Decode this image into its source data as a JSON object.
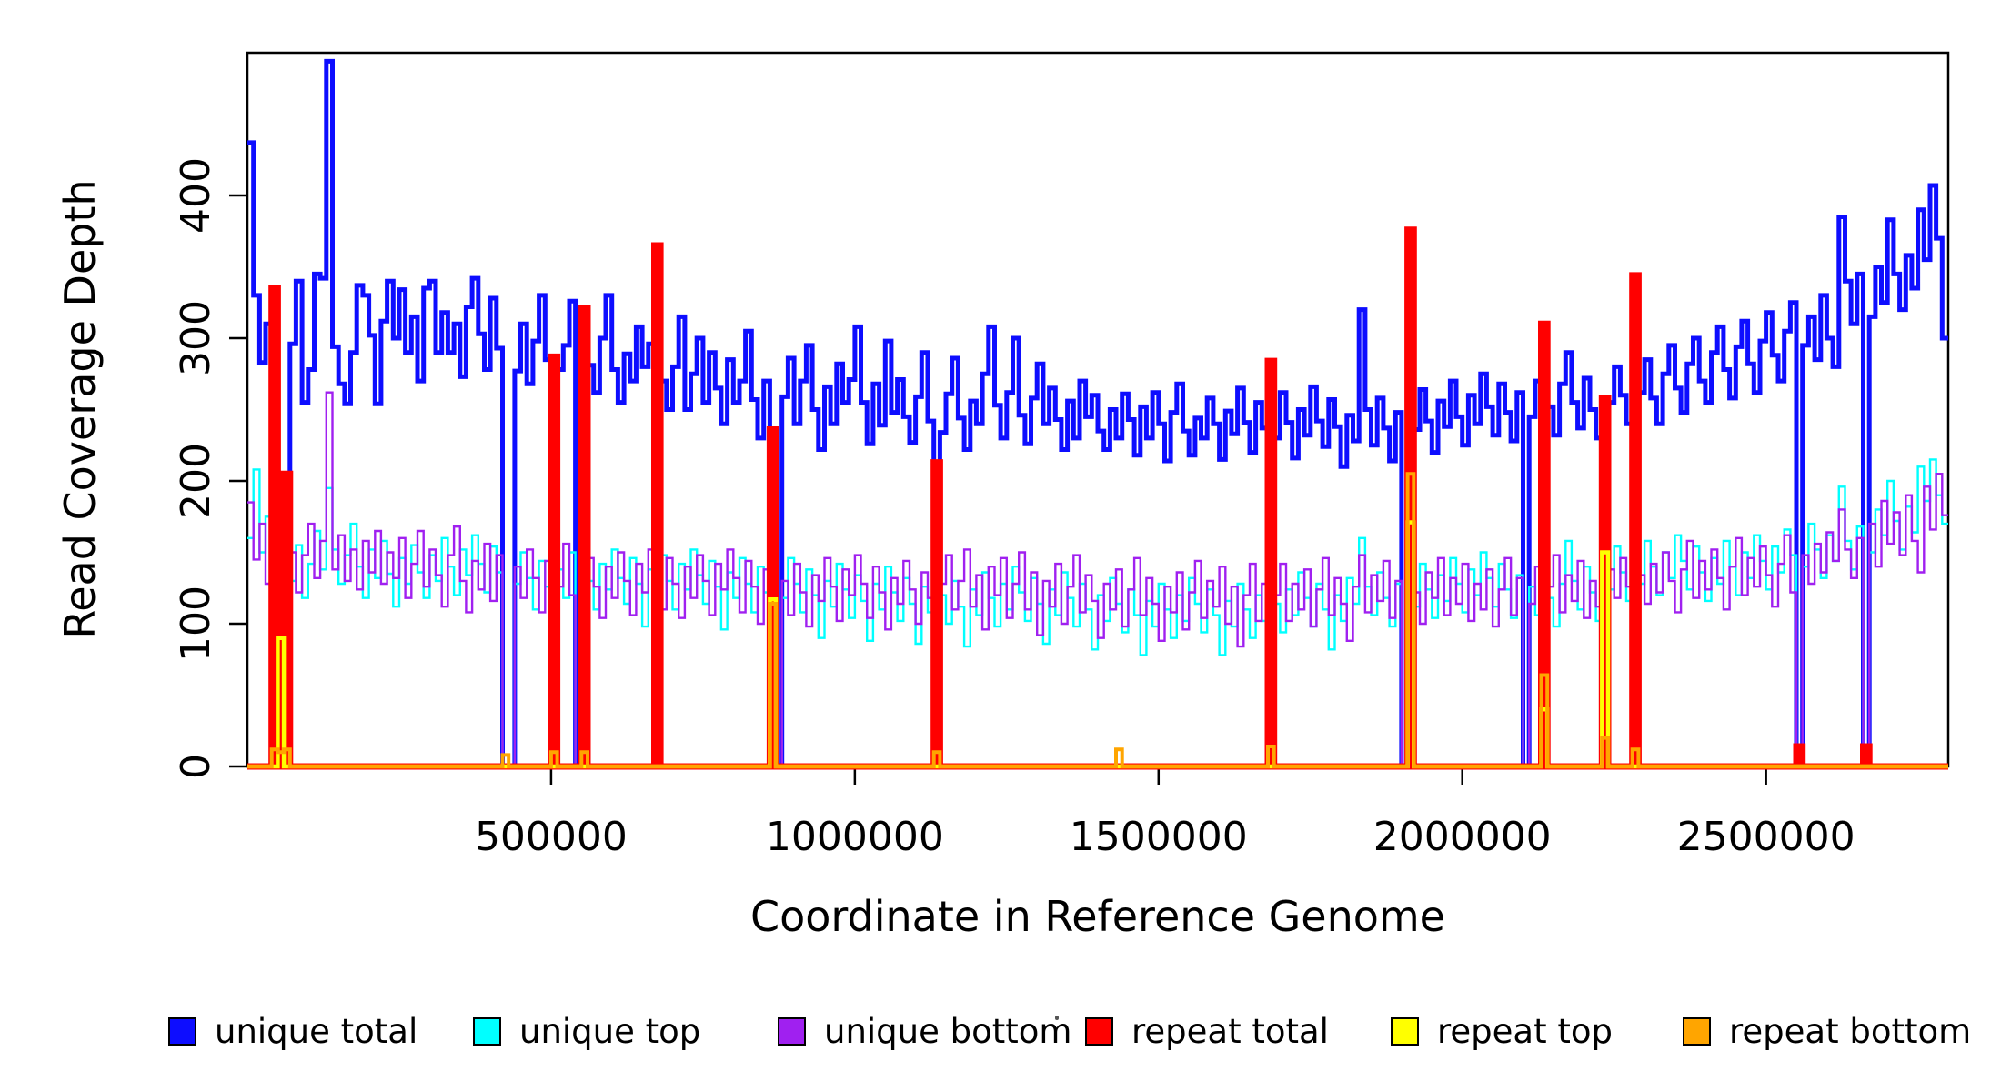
{
  "figure": {
    "background": "#FFFFFF",
    "frame_color": "#000000"
  },
  "axes": {
    "ylabel": "Read Coverage Depth",
    "xlabel": "Coordinate in Reference Genome",
    "y_ticks": [
      {
        "value": 0,
        "label": "0"
      },
      {
        "value": 100,
        "label": "100"
      },
      {
        "value": 200,
        "label": "200"
      },
      {
        "value": 300,
        "label": "300"
      },
      {
        "value": 400,
        "label": "400"
      }
    ],
    "x_ticks": [
      {
        "value": 500000,
        "label": "500000"
      },
      {
        "value": 1000000,
        "label": "1000000"
      },
      {
        "value": 1500000,
        "label": "1500000"
      },
      {
        "value": 2000000,
        "label": "2000000"
      },
      {
        "value": 2500000,
        "label": "2500000"
      }
    ],
    "xlim": [
      0,
      2800000
    ],
    "ylim": [
      0,
      500
    ],
    "grid": "off"
  },
  "legend": [
    {
      "label": "unique total",
      "color": "#0D0DFF"
    },
    {
      "label": "unique top",
      "color": "#00FFFF"
    },
    {
      "label": "unique bottom",
      "color": "#A020F0"
    },
    {
      "label": "repeat total",
      "color": "#FF0000"
    },
    {
      "label": "repeat top",
      "color": "#FFFF00"
    },
    {
      "label": "repeat bottom",
      "color": "#FFA500"
    }
  ],
  "chart_data": {
    "type": "line",
    "subtype": "step",
    "title": "",
    "xlabel": "Coordinate in Reference Genome",
    "ylabel": "Read Coverage Depth",
    "xlim": [
      0,
      2800000
    ],
    "ylim": [
      0,
      500
    ],
    "legend_position": "bottom",
    "x_start": 0,
    "x_step": 10000,
    "n_points": 280,
    "series": [
      {
        "name": "unique total",
        "color": "#0D0DFF",
        "line_width": 5,
        "values": [
          437,
          330,
          283,
          310,
          0,
          0,
          0,
          296,
          340,
          255,
          278,
          345,
          342,
          494,
          294,
          268,
          254,
          290,
          337,
          330,
          302,
          254,
          312,
          340,
          300,
          334,
          290,
          315,
          270,
          335,
          340,
          290,
          318,
          290,
          310,
          273,
          322,
          342,
          303,
          278,
          328,
          293,
          0,
          0,
          277,
          310,
          268,
          298,
          330,
          285,
          0,
          278,
          295,
          326,
          0,
          0,
          281,
          262,
          300,
          330,
          278,
          255,
          289,
          270,
          308,
          280,
          296,
          305,
          270,
          250,
          280,
          315,
          250,
          275,
          300,
          255,
          290,
          265,
          240,
          285,
          255,
          270,
          305,
          257,
          230,
          270,
          0,
          0,
          259,
          286,
          240,
          270,
          295,
          250,
          222,
          266,
          240,
          282,
          255,
          271,
          308,
          255,
          226,
          268,
          239,
          298,
          248,
          271,
          245,
          227,
          259,
          290,
          242,
          0,
          234,
          261,
          286,
          244,
          222,
          256,
          240,
          275,
          308,
          253,
          230,
          262,
          300,
          246,
          226,
          258,
          282,
          240,
          265,
          243,
          222,
          256,
          230,
          270,
          245,
          260,
          235,
          222,
          250,
          230,
          261,
          243,
          218,
          252,
          230,
          262,
          240,
          214,
          248,
          268,
          235,
          218,
          244,
          230,
          258,
          240,
          215,
          249,
          233,
          265,
          241,
          220,
          255,
          237,
          0,
          230,
          262,
          241,
          216,
          250,
          232,
          266,
          242,
          224,
          257,
          238,
          210,
          246,
          228,
          320,
          250,
          225,
          258,
          237,
          214,
          248,
          0,
          0,
          236,
          264,
          242,
          220,
          256,
          238,
          270,
          245,
          225,
          260,
          240,
          275,
          252,
          232,
          268,
          248,
          228,
          262,
          0,
          245,
          270,
          0,
          252,
          232,
          268,
          290,
          255,
          237,
          272,
          250,
          230,
          0,
          255,
          280,
          260,
          240,
          0,
          262,
          285,
          258,
          240,
          275,
          295,
          265,
          248,
          282,
          300,
          270,
          255,
          290,
          308,
          278,
          258,
          294,
          312,
          282,
          262,
          298,
          318,
          288,
          270,
          305,
          325,
          0,
          295,
          315,
          285,
          330,
          300,
          280,
          385,
          340,
          310,
          345,
          0,
          315,
          350,
          325,
          383,
          345,
          320,
          358,
          335,
          390,
          355,
          407,
          370,
          300
        ]
      },
      {
        "name": "unique top",
        "color": "#00FFFF",
        "line_width": 2.4,
        "values": [
          160,
          208,
          150,
          175,
          0,
          0,
          0,
          130,
          155,
          118,
          142,
          165,
          138,
          195,
          152,
          128,
          148,
          170,
          140,
          118,
          152,
          132,
          158,
          135,
          112,
          146,
          128,
          155,
          136,
          118,
          148,
          130,
          160,
          140,
          120,
          152,
          134,
          162,
          142,
          122,
          154,
          136,
          0,
          0,
          128,
          150,
          132,
          110,
          144,
          126,
          0,
          138,
          118,
          150,
          0,
          0,
          130,
          110,
          142,
          124,
          152,
          132,
          114,
          146,
          128,
          98,
          138,
          120,
          148,
          130,
          110,
          142,
          124,
          152,
          134,
          114,
          144,
          126,
          96,
          136,
          118,
          146,
          128,
          108,
          140,
          122,
          0,
          0,
          118,
          146,
          128,
          108,
          138,
          120,
          90,
          130,
          112,
          142,
          124,
          104,
          134,
          116,
          88,
          128,
          110,
          140,
          122,
          102,
          132,
          114,
          86,
          126,
          108,
          0,
          120,
          100,
          130,
          112,
          84,
          124,
          106,
          136,
          118,
          98,
          128,
          110,
          140,
          122,
          102,
          132,
          114,
          86,
          124,
          106,
          136,
          118,
          98,
          128,
          110,
          82,
          120,
          102,
          132,
          114,
          94,
          124,
          106,
          78,
          116,
          98,
          128,
          110,
          90,
          120,
          102,
          132,
          114,
          94,
          124,
          106,
          78,
          116,
          98,
          128,
          110,
          90,
          120,
          102,
          0,
          114,
          94,
          124,
          106,
          136,
          118,
          98,
          128,
          110,
          82,
          120,
          102,
          132,
          114,
          160,
          126,
          106,
          136,
          118,
          98,
          128,
          0,
          0,
          112,
          142,
          124,
          104,
          134,
          116,
          146,
          128,
          108,
          138,
          120,
          150,
          132,
          112,
          142,
          124,
          104,
          134,
          0,
          126,
          106,
          0,
          118,
          98,
          128,
          158,
          130,
          110,
          140,
          122,
          102,
          0,
          124,
          154,
          136,
          116,
          0,
          128,
          158,
          140,
          120,
          150,
          132,
          162,
          144,
          124,
          154,
          136,
          116,
          146,
          128,
          158,
          140,
          120,
          150,
          132,
          162,
          144,
          124,
          154,
          136,
          166,
          148,
          0,
          140,
          170,
          152,
          132,
          162,
          144,
          196,
          158,
          138,
          168,
          0,
          150,
          180,
          162,
          200,
          172,
          152,
          182,
          164,
          210,
          186,
          215,
          190,
          170
        ]
      },
      {
        "name": "unique bottom",
        "color": "#A020F0",
        "line_width": 2.4,
        "values": [
          185,
          145,
          170,
          128,
          0,
          0,
          0,
          150,
          122,
          148,
          170,
          132,
          158,
          262,
          138,
          162,
          130,
          152,
          124,
          158,
          136,
          165,
          128,
          150,
          132,
          160,
          118,
          142,
          165,
          126,
          152,
          134,
          112,
          148,
          168,
          130,
          108,
          144,
          124,
          156,
          116,
          148,
          0,
          0,
          140,
          118,
          152,
          132,
          108,
          144,
          0,
          126,
          156,
          120,
          0,
          0,
          146,
          126,
          104,
          140,
          118,
          150,
          130,
          106,
          142,
          122,
          152,
          134,
          110,
          146,
          128,
          104,
          140,
          118,
          148,
          130,
          106,
          142,
          124,
          152,
          132,
          108,
          144,
          126,
          100,
          138,
          0,
          0,
          130,
          106,
          142,
          122,
          98,
          134,
          116,
          146,
          126,
          102,
          138,
          120,
          148,
          128,
          104,
          140,
          122,
          96,
          132,
          114,
          144,
          124,
          100,
          136,
          118,
          0,
          128,
          148,
          110,
          130,
          152,
          112,
          134,
          96,
          140,
          120,
          146,
          104,
          128,
          150,
          110,
          136,
          92,
          130,
          112,
          142,
          100,
          126,
          148,
          108,
          134,
          116,
          90,
          128,
          110,
          138,
          98,
          124,
          146,
          106,
          132,
          114,
          88,
          126,
          108,
          136,
          96,
          122,
          144,
          104,
          130,
          112,
          140,
          100,
          126,
          84,
          120,
          142,
          102,
          128,
          0,
          120,
          142,
          102,
          128,
          110,
          138,
          98,
          124,
          146,
          106,
          132,
          114,
          88,
          126,
          148,
          108,
          134,
          116,
          144,
          104,
          130,
          0,
          0,
          122,
          100,
          136,
          118,
          146,
          106,
          132,
          114,
          142,
          102,
          128,
          110,
          138,
          98,
          124,
          146,
          106,
          132,
          0,
          114,
          140,
          0,
          126,
          148,
          108,
          134,
          116,
          144,
          104,
          130,
          112,
          0,
          138,
          118,
          146,
          126,
          0,
          134,
          114,
          142,
          122,
          150,
          130,
          108,
          138,
          158,
          118,
          144,
          124,
          152,
          132,
          110,
          140,
          160,
          120,
          146,
          126,
          154,
          134,
          112,
          142,
          162,
          122,
          0,
          148,
          128,
          156,
          136,
          164,
          144,
          180,
          152,
          132,
          160,
          0,
          170,
          140,
          186,
          156,
          178,
          148,
          190,
          158,
          136,
          196,
          166,
          205,
          176
        ]
      },
      {
        "name": "repeat total",
        "color": "#FF0000",
        "line_width": 7,
        "baseline": 0,
        "spikes": {
          "4": 335,
          "6": 205,
          "50": 287,
          "55": 321,
          "67": 365,
          "86": 236,
          "113": 213,
          "168": 284,
          "191": 376,
          "213": 310,
          "223": 258,
          "228": 344,
          "255": 14,
          "266": 14
        }
      },
      {
        "name": "repeat top",
        "color": "#FFFF00",
        "line_width": 4.5,
        "baseline": 0,
        "spikes": {
          "5": 90,
          "86": 117,
          "191": 171,
          "213": 40,
          "223": 150
        }
      },
      {
        "name": "repeat bottom",
        "color": "#FFA500",
        "line_width": 4,
        "baseline": 0,
        "spikes": {
          "4": 12,
          "5": 10,
          "6": 12,
          "42": 8,
          "50": 10,
          "55": 10,
          "86": 114,
          "113": 10,
          "143": 12,
          "168": 14,
          "191": 205,
          "213": 64,
          "223": 20,
          "228": 12
        }
      }
    ]
  }
}
